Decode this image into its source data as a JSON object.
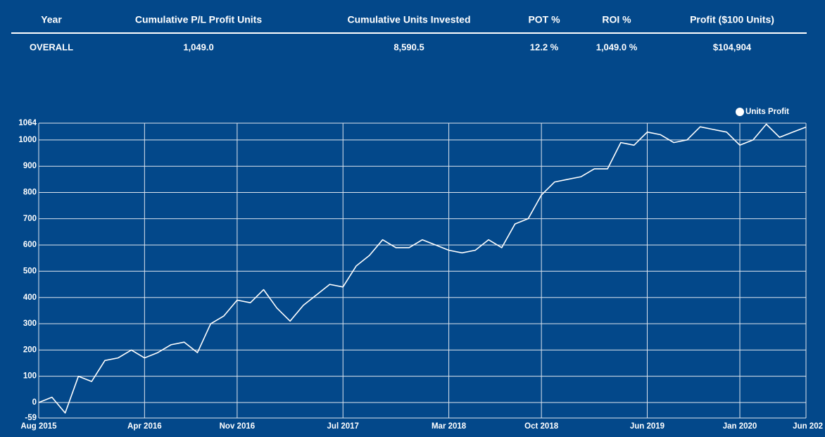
{
  "table": {
    "headers": [
      "Year",
      "Cumulative P/L Profit Units",
      "Cumulative Units Invested",
      "POT %",
      "ROI %",
      "Profit ($100 Units)"
    ],
    "rows": [
      [
        "OVERALL",
        "1,049.0",
        "8,590.5",
        "12.2 %",
        "1,049.0 %",
        "$104,904"
      ]
    ]
  },
  "chart_data": {
    "type": "line",
    "x": [
      "2015-08",
      "2015-09",
      "2015-10",
      "2015-11",
      "2015-12",
      "2016-01",
      "2016-02",
      "2016-03",
      "2016-04",
      "2016-05",
      "2016-06",
      "2016-07",
      "2016-08",
      "2016-09",
      "2016-10",
      "2016-11",
      "2016-12",
      "2017-01",
      "2017-02",
      "2017-03",
      "2017-04",
      "2017-05",
      "2017-06",
      "2017-07",
      "2017-08",
      "2017-09",
      "2017-10",
      "2017-11",
      "2017-12",
      "2018-01",
      "2018-02",
      "2018-03",
      "2018-04",
      "2018-05",
      "2018-06",
      "2018-07",
      "2018-08",
      "2018-09",
      "2018-10",
      "2018-11",
      "2018-12",
      "2019-01",
      "2019-02",
      "2019-03",
      "2019-04",
      "2019-05",
      "2019-06",
      "2019-07",
      "2019-08",
      "2019-09",
      "2019-10",
      "2019-11",
      "2019-12",
      "2020-01",
      "2020-02",
      "2020-03",
      "2020-04",
      "2020-05",
      "2020-06"
    ],
    "series": [
      {
        "name": "Units Profit",
        "color": "#ffffff",
        "values": [
          0,
          20,
          -40,
          100,
          80,
          160,
          170,
          200,
          170,
          190,
          220,
          230,
          190,
          300,
          330,
          390,
          380,
          430,
          360,
          310,
          370,
          410,
          450,
          440,
          520,
          560,
          620,
          590,
          590,
          620,
          600,
          580,
          570,
          580,
          620,
          590,
          680,
          700,
          790,
          840,
          850,
          860,
          890,
          890,
          990,
          980,
          1030,
          1020,
          990,
          1000,
          1050,
          1040,
          1030,
          980,
          1000,
          1060,
          1010,
          1030,
          1049
        ]
      }
    ],
    "xlim": [
      "2015-08",
      "2020-06"
    ],
    "xticks": [
      {
        "value": "2015-08",
        "label": "Aug 2015"
      },
      {
        "value": "2016-04",
        "label": "Apr 2016"
      },
      {
        "value": "2016-11",
        "label": "Nov 2016"
      },
      {
        "value": "2017-07",
        "label": "Jul 2017"
      },
      {
        "value": "2018-03",
        "label": "Mar 2018"
      },
      {
        "value": "2018-10",
        "label": "Oct 2018"
      },
      {
        "value": "2019-06",
        "label": "Jun 2019"
      },
      {
        "value": "2020-01",
        "label": "Jan 2020"
      },
      {
        "value": "2020-06",
        "label": "Jun 202"
      }
    ],
    "ylim": [
      -59,
      1064
    ],
    "yticks": [
      -59,
      0,
      100,
      200,
      300,
      400,
      500,
      600,
      700,
      800,
      900,
      1000,
      1064
    ],
    "grid": true,
    "legend": "top-right"
  }
}
